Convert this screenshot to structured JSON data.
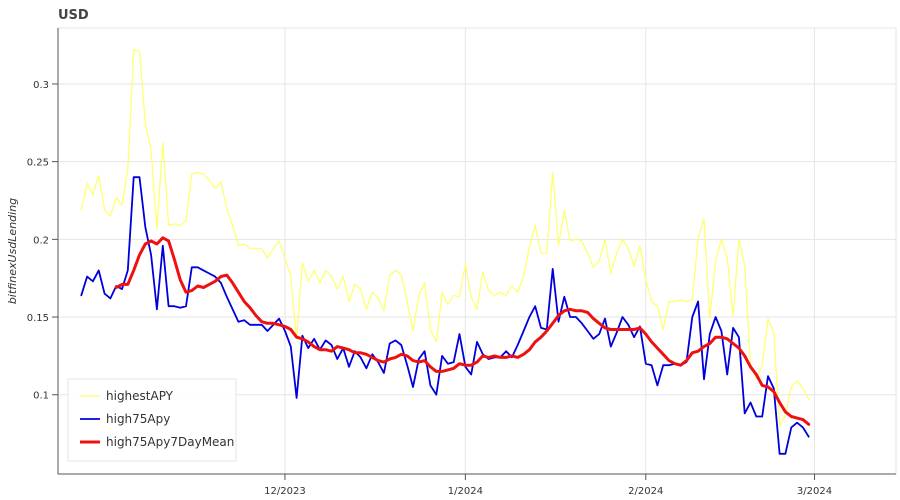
{
  "title": "USD",
  "chart_data": {
    "type": "line",
    "title": "USD",
    "xlabel": "",
    "ylabel": "bitfinexUsdLending",
    "x_start": "2023-10-27",
    "x_ticks": [
      {
        "label": "12/2023",
        "date": "2023-12-01"
      },
      {
        "label": "1/2024",
        "date": "2024-01-01"
      },
      {
        "label": "2/2024",
        "date": "2024-02-01"
      },
      {
        "label": "3/2024",
        "date": "2024-03-01"
      }
    ],
    "y_ticks": [
      0.1,
      0.15,
      0.2,
      0.25,
      0.3
    ],
    "xlim": [
      "2023-10-23",
      "2024-03-15"
    ],
    "ylim": [
      0.049,
      0.336
    ],
    "grid": true,
    "legend_position": "bottom-left",
    "series": [
      {
        "name": "highestAPY",
        "color": "#ffff66",
        "width": 1.2,
        "values": [
          0.219,
          0.236,
          0.229,
          0.241,
          0.219,
          0.215,
          0.227,
          0.222,
          0.245,
          0.322,
          0.321,
          0.275,
          0.257,
          0.207,
          0.262,
          0.209,
          0.21,
          0.209,
          0.212,
          0.242,
          0.243,
          0.242,
          0.238,
          0.233,
          0.237,
          0.22,
          0.209,
          0.196,
          0.197,
          0.194,
          0.194,
          0.194,
          0.188,
          0.194,
          0.199,
          0.188,
          0.176,
          0.136,
          0.185,
          0.173,
          0.18,
          0.172,
          0.18,
          0.176,
          0.168,
          0.176,
          0.16,
          0.171,
          0.168,
          0.155,
          0.166,
          0.162,
          0.154,
          0.177,
          0.18,
          0.177,
          0.16,
          0.141,
          0.164,
          0.172,
          0.142,
          0.134,
          0.166,
          0.158,
          0.164,
          0.163,
          0.184,
          0.163,
          0.155,
          0.179,
          0.167,
          0.164,
          0.166,
          0.164,
          0.17,
          0.166,
          0.176,
          0.195,
          0.209,
          0.191,
          0.191,
          0.243,
          0.196,
          0.219,
          0.199,
          0.2,
          0.199,
          0.191,
          0.182,
          0.186,
          0.2,
          0.178,
          0.191,
          0.2,
          0.194,
          0.183,
          0.196,
          0.174,
          0.16,
          0.157,
          0.142,
          0.16,
          0.16,
          0.161,
          0.16,
          0.161,
          0.201,
          0.213,
          0.149,
          0.186,
          0.2,
          0.188,
          0.151,
          0.2,
          0.183,
          0.12,
          0.11,
          0.119,
          0.149,
          0.14,
          0.08,
          0.087,
          0.105,
          0.109,
          0.104,
          0.097
        ]
      },
      {
        "name": "high75Apy",
        "color": "#0000dd",
        "width": 1.8,
        "values": [
          0.164,
          0.176,
          0.173,
          0.18,
          0.165,
          0.162,
          0.17,
          0.168,
          0.18,
          0.24,
          0.24,
          0.208,
          0.19,
          0.155,
          0.196,
          0.157,
          0.157,
          0.156,
          0.157,
          0.182,
          0.182,
          0.18,
          0.178,
          0.176,
          0.172,
          0.163,
          0.155,
          0.147,
          0.148,
          0.145,
          0.145,
          0.145,
          0.141,
          0.145,
          0.149,
          0.141,
          0.131,
          0.098,
          0.138,
          0.13,
          0.136,
          0.129,
          0.135,
          0.132,
          0.123,
          0.13,
          0.118,
          0.128,
          0.124,
          0.117,
          0.126,
          0.121,
          0.114,
          0.133,
          0.135,
          0.132,
          0.119,
          0.105,
          0.123,
          0.128,
          0.106,
          0.1,
          0.125,
          0.12,
          0.121,
          0.139,
          0.118,
          0.113,
          0.134,
          0.126,
          0.123,
          0.124,
          0.124,
          0.128,
          0.124,
          0.132,
          0.141,
          0.15,
          0.157,
          0.143,
          0.142,
          0.181,
          0.147,
          0.163,
          0.15,
          0.15,
          0.146,
          0.141,
          0.136,
          0.139,
          0.149,
          0.131,
          0.14,
          0.15,
          0.145,
          0.137,
          0.144,
          0.12,
          0.119,
          0.106,
          0.119,
          0.119,
          0.12,
          0.119,
          0.121,
          0.15,
          0.16,
          0.11,
          0.139,
          0.15,
          0.141,
          0.113,
          0.143,
          0.137,
          0.088,
          0.095,
          0.086,
          0.086,
          0.112,
          0.104,
          0.062,
          0.062,
          0.079,
          0.082,
          0.079,
          0.073
        ]
      },
      {
        "name": "high75Apy7DayMean",
        "color": "#ee1111",
        "width": 3,
        "values": [
          null,
          null,
          null,
          null,
          null,
          null,
          0.169,
          0.171,
          0.171,
          0.18,
          0.19,
          0.197,
          0.199,
          0.197,
          0.201,
          0.199,
          0.187,
          0.174,
          0.166,
          0.167,
          0.17,
          0.169,
          0.171,
          0.173,
          0.176,
          0.177,
          0.172,
          0.166,
          0.16,
          0.156,
          0.151,
          0.147,
          0.146,
          0.146,
          0.145,
          0.144,
          0.142,
          0.137,
          0.136,
          0.134,
          0.131,
          0.129,
          0.129,
          0.128,
          0.131,
          0.13,
          0.129,
          0.127,
          0.127,
          0.126,
          0.124,
          0.122,
          0.121,
          0.123,
          0.124,
          0.126,
          0.125,
          0.122,
          0.121,
          0.122,
          0.118,
          0.115,
          0.115,
          0.116,
          0.117,
          0.12,
          0.119,
          0.119,
          0.121,
          0.125,
          0.124,
          0.125,
          0.124,
          0.124,
          0.125,
          0.124,
          0.126,
          0.129,
          0.134,
          0.137,
          0.141,
          0.146,
          0.151,
          0.154,
          0.155,
          0.154,
          0.154,
          0.153,
          0.149,
          0.146,
          0.143,
          0.142,
          0.142,
          0.142,
          0.142,
          0.142,
          0.143,
          0.139,
          0.134,
          0.13,
          0.126,
          0.122,
          0.12,
          0.119,
          0.122,
          0.127,
          0.128,
          0.131,
          0.133,
          0.137,
          0.137,
          0.136,
          0.133,
          0.13,
          0.125,
          0.118,
          0.113,
          0.106,
          0.105,
          0.102,
          0.095,
          0.089,
          0.086,
          0.085,
          0.084,
          0.081
        ]
      }
    ]
  }
}
